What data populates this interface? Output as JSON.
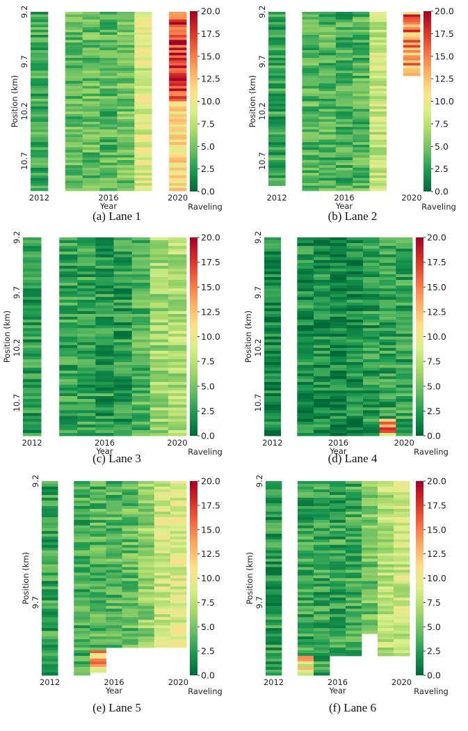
{
  "colorscale": {
    "min": 0.0,
    "max": 20.0,
    "stops": [
      "#006837",
      "#1a9850",
      "#66bd63",
      "#a6d96a",
      "#d9ef8b",
      "#fee08b",
      "#fdae61",
      "#f46d43",
      "#d73027",
      "#a50026"
    ],
    "ticks": [
      "20.0",
      "17.5",
      "15.0",
      "12.5",
      "10.0",
      "7.5",
      "5.0",
      "2.5",
      "0.0"
    ],
    "label": "Raveling"
  },
  "chart_data": [
    {
      "type": "heatmap",
      "caption": "(a) Lane 1",
      "xlabel": "Year",
      "ylabel": "Position (km)",
      "x_tick_labels": [
        "2012",
        "2016",
        "2020"
      ],
      "y_tick_labels": [
        "9.2",
        "9.7",
        "10.2",
        "10.7"
      ],
      "y_range_km": [
        9.2,
        11.0
      ],
      "years": [
        2012,
        2013,
        2014,
        2015,
        2016,
        2017,
        2018,
        2019,
        2020
      ],
      "column_mean_raveling": [
        3.5,
        null,
        4.5,
        4.5,
        4.0,
        5.0,
        9.0,
        null,
        11.0
      ],
      "column_coverage_top_km": [
        9.2,
        null,
        9.2,
        9.2,
        9.2,
        9.2,
        9.2,
        null,
        9.2
      ],
      "column_coverage_bottom_km": [
        11.0,
        null,
        11.0,
        11.0,
        11.0,
        11.0,
        11.0,
        null,
        11.0
      ],
      "notes": [
        "2020 column upper part reaches ~16-18 (orange/red)"
      ]
    },
    {
      "type": "heatmap",
      "caption": "(b) Lane 2",
      "xlabel": "Year",
      "ylabel": "Position (km)",
      "x_tick_labels": [
        "2012",
        "2016",
        "2020"
      ],
      "y_tick_labels": [
        "9.2",
        "9.7",
        "10.2",
        "10.7"
      ],
      "y_range_km": [
        9.2,
        11.0
      ],
      "years": [
        2012,
        2013,
        2014,
        2015,
        2016,
        2017,
        2018,
        2019,
        2020
      ],
      "column_mean_raveling": [
        3.0,
        null,
        4.0,
        4.0,
        3.5,
        4.0,
        8.0,
        null,
        12.0
      ],
      "column_coverage_top_km": [
        9.2,
        null,
        9.2,
        9.2,
        9.2,
        9.2,
        9.2,
        null,
        9.2
      ],
      "column_coverage_bottom_km": [
        10.95,
        null,
        11.0,
        11.0,
        11.0,
        11.0,
        11.0,
        null,
        9.85
      ],
      "notes": [
        "2020 column from 9.2 to ~9.85 km reaches ~15-19"
      ]
    },
    {
      "type": "heatmap",
      "caption": "(c) Lane 3",
      "xlabel": "Year",
      "ylabel": "Position (km)",
      "x_tick_labels": [
        "2012",
        "2016",
        "2020"
      ],
      "y_tick_labels": [
        "9.2",
        "9.7",
        "10.2",
        "10.7"
      ],
      "y_range_km": [
        9.2,
        11.0
      ],
      "years": [
        2012,
        2013,
        2014,
        2015,
        2016,
        2017,
        2018,
        2019,
        2020
      ],
      "column_mean_raveling": [
        2.5,
        null,
        3.0,
        3.0,
        2.5,
        2.5,
        4.0,
        6.5,
        7.0
      ],
      "column_coverage_top_km": [
        9.2,
        null,
        9.2,
        9.2,
        9.2,
        9.2,
        9.2,
        9.2,
        9.2
      ],
      "column_coverage_bottom_km": [
        11.0,
        null,
        11.0,
        11.0,
        11.0,
        11.0,
        11.0,
        11.0,
        11.0
      ]
    },
    {
      "type": "heatmap",
      "caption": "(d) Lane 4",
      "xlabel": "Year",
      "ylabel": "Position (km)",
      "x_tick_labels": [
        "2012",
        "2016",
        "2020"
      ],
      "y_tick_labels": [
        "9.2",
        "9.7",
        "10.2",
        "10.7"
      ],
      "y_range_km": [
        9.2,
        11.0
      ],
      "years": [
        2012,
        2013,
        2014,
        2015,
        2016,
        2017,
        2018,
        2019,
        2020
      ],
      "column_mean_raveling": [
        1.5,
        null,
        2.0,
        2.0,
        1.5,
        1.8,
        2.5,
        3.0,
        3.0
      ],
      "column_coverage_top_km": [
        9.2,
        null,
        9.2,
        9.2,
        9.2,
        9.2,
        9.2,
        9.2,
        9.2
      ],
      "column_coverage_bottom_km": [
        11.0,
        null,
        11.0,
        11.0,
        11.0,
        11.0,
        11.0,
        11.0,
        11.0
      ],
      "notes": [
        "2019 column near 10.95 km reaches ~17"
      ]
    },
    {
      "type": "heatmap",
      "caption": "(e) Lane 5",
      "xlabel": "Year",
      "ylabel": "Position (km)",
      "x_tick_labels": [
        "2012",
        "2016",
        "2020"
      ],
      "y_tick_labels": [
        "9.2",
        "9.7"
      ],
      "y_range_km": [
        9.2,
        10.0
      ],
      "years": [
        2012,
        2013,
        2014,
        2015,
        2016,
        2017,
        2018,
        2019,
        2020
      ],
      "column_mean_raveling": [
        3.0,
        null,
        3.5,
        4.0,
        4.0,
        4.5,
        6.0,
        8.5,
        9.0
      ],
      "column_coverage_top_km": [
        9.2,
        null,
        9.2,
        9.2,
        9.2,
        9.2,
        9.2,
        9.2,
        9.2
      ],
      "column_coverage_bottom_km": [
        10.0,
        null,
        10.0,
        9.99,
        9.89,
        9.89,
        9.89,
        9.89,
        9.89
      ],
      "notes": [
        "2015 column near 9.95 km reaches ~18"
      ]
    },
    {
      "type": "heatmap",
      "caption": "(f) Lane 6",
      "xlabel": "Year",
      "ylabel": "Position (km)",
      "x_tick_labels": [
        "2012",
        "2016",
        "2020"
      ],
      "y_tick_labels": [
        "9.2",
        "9.7"
      ],
      "y_range_km": [
        9.2,
        10.0
      ],
      "years": [
        2012,
        2013,
        2014,
        2015,
        2016,
        2017,
        2018,
        2019,
        2020
      ],
      "column_mean_raveling": [
        2.5,
        null,
        3.0,
        3.0,
        3.0,
        3.5,
        5.0,
        7.5,
        8.0
      ],
      "column_coverage_top_km": [
        9.2,
        null,
        9.2,
        9.2,
        9.2,
        9.2,
        9.2,
        9.2,
        9.2
      ],
      "column_coverage_bottom_km": [
        10.0,
        null,
        10.0,
        10.0,
        9.92,
        9.92,
        9.83,
        9.92,
        9.92
      ],
      "notes": [
        "2014 column near 9.97 km reaches ~15"
      ]
    }
  ]
}
